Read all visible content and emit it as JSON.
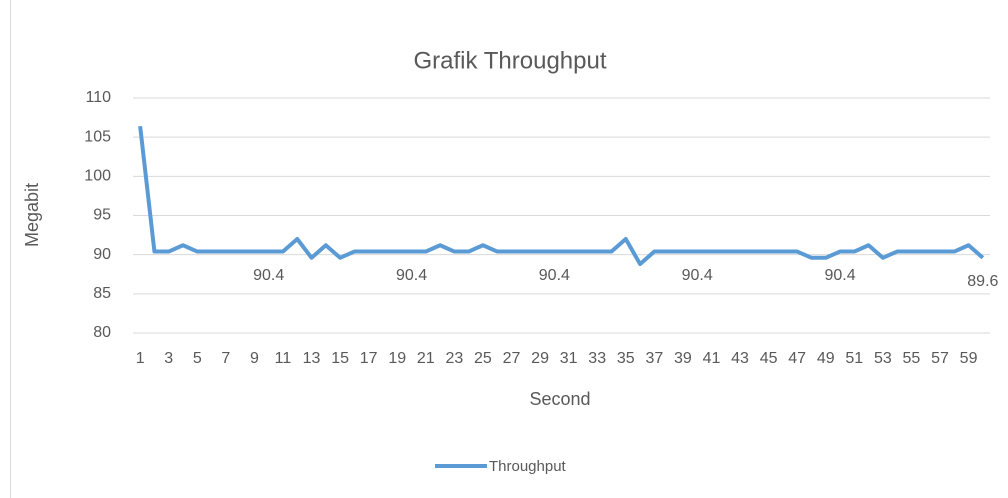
{
  "chart_data": {
    "type": "line",
    "title": "Grafik Throughput",
    "x_label": "Second",
    "y_label": "Megabit",
    "categories": [
      1,
      null,
      3,
      null,
      5,
      null,
      7,
      null,
      9,
      null,
      11,
      null,
      13,
      null,
      15,
      null,
      17,
      null,
      19,
      null,
      21,
      null,
      23,
      null,
      25,
      null,
      27,
      null,
      29,
      null,
      31,
      null,
      33,
      null,
      35,
      null,
      37,
      null,
      39,
      null,
      41,
      null,
      43,
      null,
      45,
      null,
      47,
      null,
      49,
      null,
      51,
      null,
      53,
      null,
      55,
      null,
      57,
      null,
      59,
      null
    ],
    "series": [
      {
        "name": "Throughput",
        "color": "#5b9bd5",
        "values": [
          106.4,
          90.4,
          90.4,
          91.2,
          90.4,
          90.4,
          90.4,
          90.4,
          90.4,
          90.4,
          90.4,
          92,
          89.6,
          91.2,
          89.6,
          90.4,
          90.4,
          90.4,
          90.4,
          90.4,
          90.4,
          91.2,
          90.4,
          90.4,
          91.2,
          90.4,
          90.4,
          90.4,
          90.4,
          90.4,
          90.4,
          90.4,
          90.4,
          90.4,
          92,
          88.8,
          90.4,
          90.4,
          90.4,
          90.4,
          90.4,
          90.4,
          90.4,
          90.4,
          90.4,
          90.4,
          90.4,
          89.6,
          89.6,
          90.4,
          90.4,
          91.2,
          89.6,
          90.4,
          90.4,
          90.4,
          90.4,
          90.4,
          91.2,
          89.6
        ],
        "value_labels": [
          null,
          null,
          null,
          null,
          null,
          null,
          null,
          null,
          null,
          "90.4",
          null,
          null,
          null,
          null,
          null,
          null,
          null,
          null,
          null,
          "90.4",
          null,
          null,
          null,
          null,
          null,
          null,
          null,
          null,
          null,
          "90.4",
          null,
          null,
          null,
          null,
          null,
          null,
          null,
          null,
          null,
          "90.4",
          null,
          null,
          null,
          null,
          null,
          null,
          null,
          null,
          null,
          "90.4",
          null,
          null,
          null,
          null,
          null,
          null,
          null,
          null,
          null,
          "89.6"
        ]
      }
    ],
    "ylim": [
      80,
      110
    ],
    "yticks": [
      80,
      85,
      90,
      95,
      100,
      105,
      110
    ],
    "grid": true,
    "legend": "bottom"
  }
}
